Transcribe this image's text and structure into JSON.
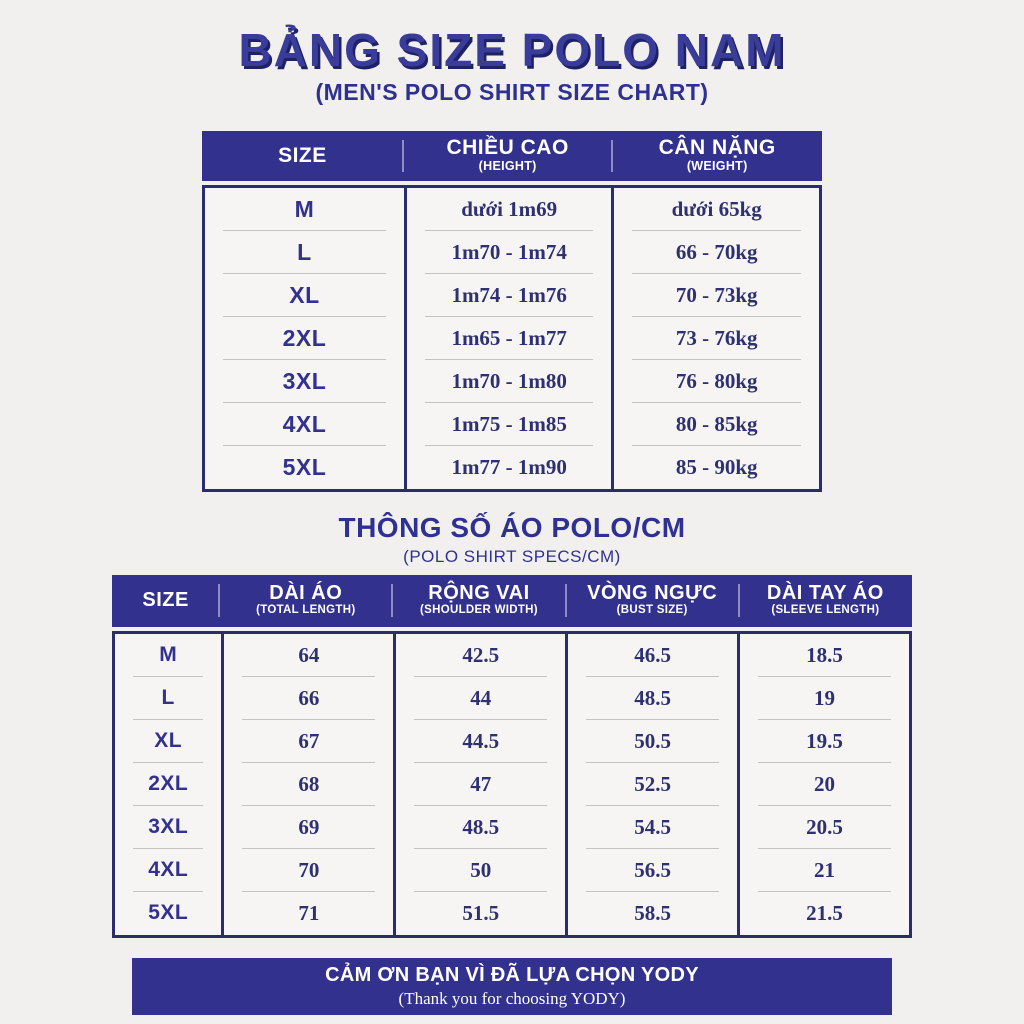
{
  "page": {
    "title": "BẢNG SIZE POLO NAM",
    "subtitle": "(MEN'S POLO SHIRT SIZE CHART)"
  },
  "colors": {
    "navy": "#32318e",
    "navy_dark": "#2b2c6f",
    "background": "#f1f0ee",
    "table_body_bg": "#f6f5f3",
    "value_text": "#2e3071",
    "header_text": "#ffffff"
  },
  "chart_data": [
    {
      "type": "table",
      "title": "BẢNG SIZE POLO NAM",
      "subtitle": "(MEN'S POLO SHIRT SIZE CHART)",
      "columns": [
        {
          "label": "SIZE",
          "sublabel": ""
        },
        {
          "label": "CHIỀU CAO",
          "sublabel": "(HEIGHT)"
        },
        {
          "label": "CÂN NẶNG",
          "sublabel": "(WEIGHT)"
        }
      ],
      "rows": [
        [
          "M",
          "dưới 1m69",
          "dưới 65kg"
        ],
        [
          "L",
          "1m70 - 1m74",
          "66 - 70kg"
        ],
        [
          "XL",
          "1m74 - 1m76",
          "70 - 73kg"
        ],
        [
          "2XL",
          "1m65 - 1m77",
          "73 - 76kg"
        ],
        [
          "3XL",
          "1m70 - 1m80",
          "76 - 80kg"
        ],
        [
          "4XL",
          "1m75 - 1m85",
          "80 - 85kg"
        ],
        [
          "5XL",
          "1m77 - 1m90",
          "85 - 90kg"
        ]
      ]
    },
    {
      "type": "table",
      "title": "THÔNG SỐ ÁO POLO/CM",
      "subtitle": "(POLO SHIRT SPECS/CM)",
      "columns": [
        {
          "label": "SIZE",
          "sublabel": ""
        },
        {
          "label": "DÀI ÁO",
          "sublabel": "(TOTAL LENGTH)"
        },
        {
          "label": "RỘNG VAI",
          "sublabel": "(SHOULDER WIDTH)"
        },
        {
          "label": "VÒNG NGỰC",
          "sublabel": "(BUST SIZE)"
        },
        {
          "label": "DÀI TAY ÁO",
          "sublabel": "(SLEEVE LENGTH)"
        }
      ],
      "rows": [
        [
          "M",
          "64",
          "42.5",
          "46.5",
          "18.5"
        ],
        [
          "L",
          "66",
          "44",
          "48.5",
          "19"
        ],
        [
          "XL",
          "67",
          "44.5",
          "50.5",
          "19.5"
        ],
        [
          "2XL",
          "68",
          "47",
          "52.5",
          "20"
        ],
        [
          "3XL",
          "69",
          "48.5",
          "54.5",
          "20.5"
        ],
        [
          "4XL",
          "70",
          "50",
          "56.5",
          "21"
        ],
        [
          "5XL",
          "71",
          "51.5",
          "58.5",
          "21.5"
        ]
      ]
    }
  ],
  "footer": {
    "line1": "CẢM ƠN BẠN VÌ ĐÃ LỰA CHỌN YODY",
    "line2": "(Thank you for choosing YODY)"
  }
}
